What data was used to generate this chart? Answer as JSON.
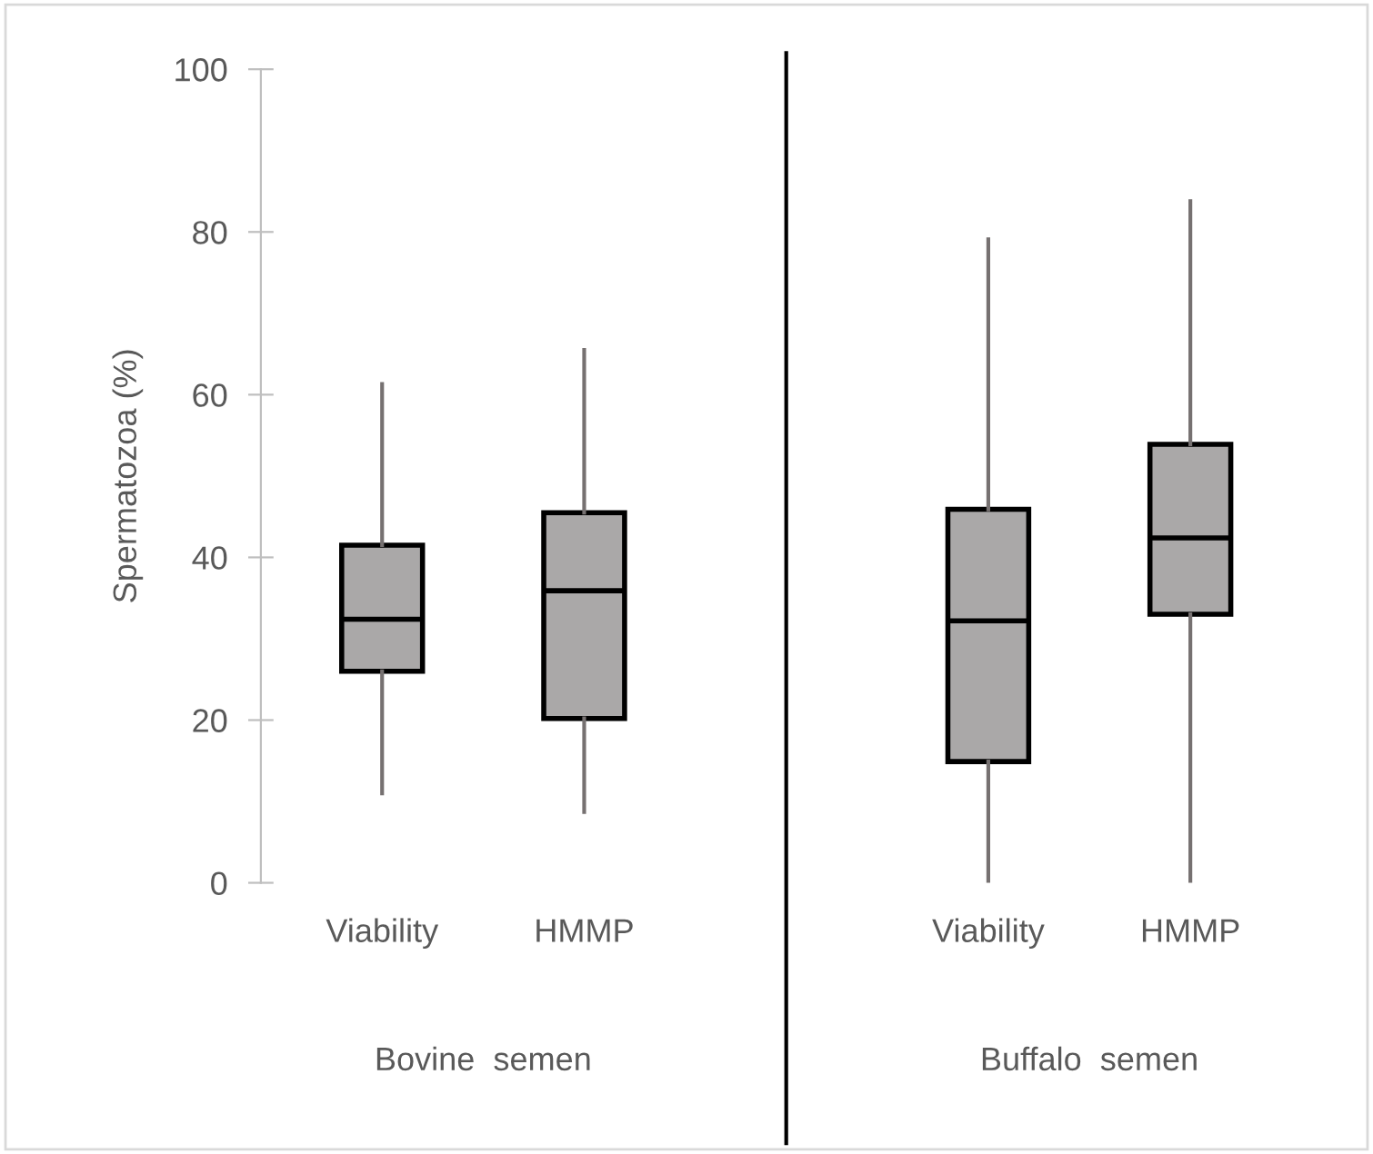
{
  "chart_data": {
    "type": "box",
    "ylabel": "Spermatozoa (%)",
    "categories": [
      "Viability",
      "HMMP",
      "Viability",
      "HMMP"
    ],
    "boxes": [
      {
        "low": 11,
        "q1": 26,
        "median": 32.4,
        "q3": 41.5,
        "high": 61.3
      },
      {
        "low": 8.7,
        "q1": 20.2,
        "median": 35.9,
        "q3": 45.5,
        "high": 65.5
      },
      {
        "low": 0,
        "q1": 14.9,
        "median": 32.2,
        "q3": 45.9,
        "high": 79.1
      },
      {
        "low": 0,
        "q1": 33,
        "median": 42.4,
        "q3": 53.9,
        "high": 83.8
      }
    ],
    "color": "#aaa8a8",
    "ylim": [
      0,
      100
    ],
    "yticks": [
      0,
      20,
      40,
      60,
      80,
      100
    ],
    "annotations": [
      "Bovine  semen",
      "Buffalo  semen"
    ],
    "grid": false
  }
}
